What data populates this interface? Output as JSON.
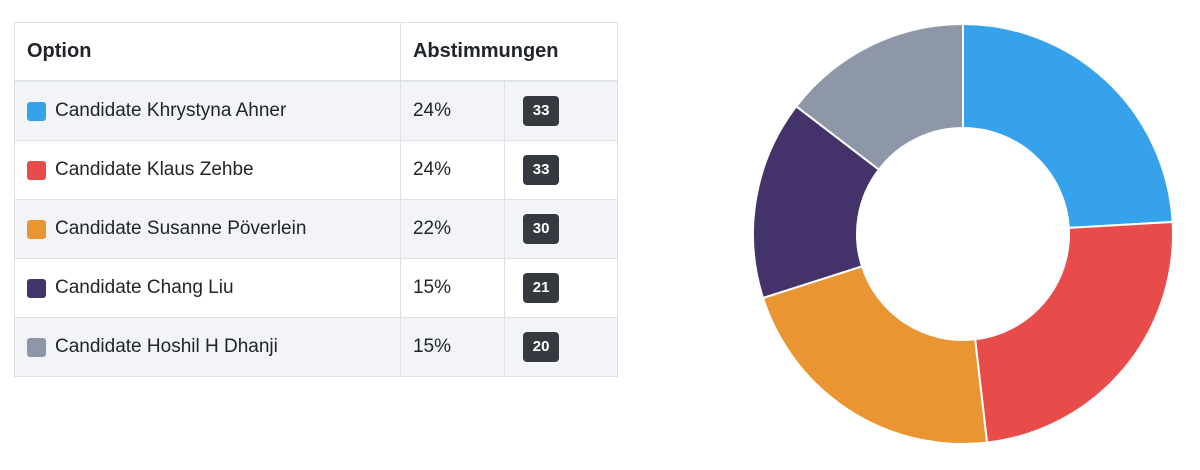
{
  "table": {
    "header_option": "Option",
    "header_votes": "Abstimmungen",
    "rows": [
      {
        "label": "Candidate Khrystyna Ahner",
        "percent": "24%",
        "count": "33",
        "color": "#36a2eb"
      },
      {
        "label": "Candidate Klaus Zehbe",
        "percent": "24%",
        "count": "33",
        "color": "#e84c4a"
      },
      {
        "label": "Candidate Susanne Pöverlein",
        "percent": "22%",
        "count": "30",
        "color": "#e99532"
      },
      {
        "label": "Candidate Chang Liu",
        "percent": "15%",
        "count": "21",
        "color": "#44336a"
      },
      {
        "label": "Candidate Hoshil H Dhanji",
        "percent": "15%",
        "count": "20",
        "color": "#8d97a8"
      }
    ]
  },
  "chart_data": {
    "type": "pie",
    "variant": "doughnut",
    "categories": [
      "Candidate Khrystyna Ahner",
      "Candidate Klaus Zehbe",
      "Candidate Susanne Pöverlein",
      "Candidate Chang Liu",
      "Candidate Hoshil H Dhanji"
    ],
    "values": [
      33,
      33,
      30,
      21,
      20
    ],
    "colors": [
      "#36a2eb",
      "#e84c4a",
      "#e99532",
      "#44336a",
      "#8d97a8"
    ],
    "title": "",
    "legend": "none"
  }
}
